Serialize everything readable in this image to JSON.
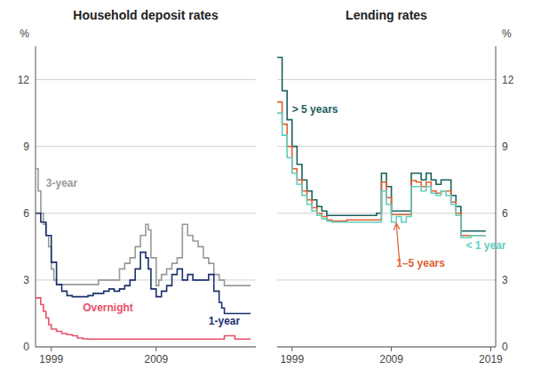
{
  "chart_data": [
    {
      "type": "line",
      "line_style": "step",
      "title": "Household deposit rates",
      "ylabel": "%",
      "xlim": [
        1997.5,
        2018.5
      ],
      "xticks": [
        1999,
        2009
      ],
      "ylim": [
        0,
        13.5
      ],
      "yticks": [
        0,
        3,
        6,
        9,
        12
      ],
      "grid": true,
      "series": [
        {
          "color": "#999999",
          "x": [
            1997.5,
            1997.75,
            1998.0,
            1998.25,
            1998.5,
            1998.75,
            1999.0,
            1999.25,
            1999.5,
            2000.0,
            2000.5,
            2001.0,
            2001.5,
            2002.0,
            2002.5,
            2003.0,
            2003.5,
            2004.0,
            2004.5,
            2005.0,
            2005.5,
            2006.0,
            2006.5,
            2007.0,
            2007.5,
            2008.0,
            2008.25,
            2008.5,
            2009.0,
            2009.25,
            2009.5,
            2010.0,
            2010.5,
            2011.0,
            2011.5,
            2012.0,
            2012.5,
            2013.0,
            2013.5,
            2014.0,
            2014.5,
            2015.0,
            2015.5,
            2016.0,
            2016.5,
            2017.0,
            2017.5,
            2018.0
          ],
          "values": [
            8.0,
            7.0,
            6.0,
            5.5,
            5.0,
            4.5,
            3.5,
            3.0,
            2.8,
            2.8,
            2.8,
            2.8,
            2.8,
            2.8,
            2.8,
            2.8,
            3.0,
            3.0,
            3.0,
            3.0,
            3.5,
            3.75,
            4.0,
            4.5,
            5.0,
            5.5,
            5.25,
            4.0,
            2.75,
            3.0,
            3.25,
            3.5,
            3.75,
            4.0,
            5.5,
            5.0,
            4.75,
            4.5,
            4.0,
            3.75,
            3.25,
            3.0,
            2.75,
            2.75,
            2.75,
            2.75,
            2.75,
            2.75
          ]
        },
        {
          "color": "#1a2f6e",
          "x": [
            1997.5,
            1998.0,
            1998.5,
            1999.0,
            1999.5,
            2000.0,
            2000.5,
            2001.0,
            2001.5,
            2002.0,
            2002.5,
            2003.0,
            2003.5,
            2004.0,
            2004.5,
            2005.0,
            2005.5,
            2006.0,
            2006.5,
            2007.0,
            2007.5,
            2008.0,
            2008.25,
            2008.5,
            2009.0,
            2009.5,
            2010.0,
            2010.5,
            2011.0,
            2011.5,
            2012.0,
            2012.5,
            2013.0,
            2013.5,
            2014.0,
            2014.5,
            2015.0,
            2015.25,
            2015.5,
            2016.0,
            2016.5,
            2017.0,
            2017.5,
            2018.0
          ],
          "values": [
            6.0,
            5.6,
            5.0,
            3.8,
            2.8,
            2.5,
            2.3,
            2.25,
            2.25,
            2.25,
            2.3,
            2.4,
            2.4,
            2.5,
            2.6,
            2.5,
            2.6,
            2.75,
            3.0,
            3.5,
            4.25,
            4.0,
            3.5,
            2.6,
            2.25,
            2.5,
            2.75,
            3.25,
            3.5,
            3.0,
            3.25,
            3.0,
            3.0,
            3.0,
            3.25,
            2.5,
            2.0,
            1.75,
            1.5,
            1.5,
            1.5,
            1.5,
            1.5,
            1.5
          ]
        },
        {
          "color": "#e8506a",
          "x": [
            1997.5,
            1998.0,
            1998.25,
            1998.5,
            1998.75,
            1999.0,
            1999.5,
            2000.0,
            2000.5,
            2001.0,
            2001.5,
            2002.0,
            2002.5,
            2003.0,
            2003.5,
            2004.0,
            2004.5,
            2005.0,
            2005.5,
            2006.0,
            2006.5,
            2007.0,
            2007.5,
            2008.0,
            2008.5,
            2009.0,
            2009.5,
            2010.0,
            2010.5,
            2011.0,
            2011.5,
            2012.0,
            2012.5,
            2013.0,
            2013.5,
            2014.0,
            2014.5,
            2015.0,
            2015.5,
            2016.0,
            2016.5,
            2017.0,
            2017.5,
            2018.0
          ],
          "values": [
            2.2,
            1.9,
            1.6,
            1.3,
            1.0,
            0.8,
            0.7,
            0.6,
            0.55,
            0.5,
            0.4,
            0.36,
            0.35,
            0.35,
            0.35,
            0.35,
            0.35,
            0.35,
            0.35,
            0.35,
            0.35,
            0.35,
            0.35,
            0.35,
            0.35,
            0.35,
            0.35,
            0.35,
            0.35,
            0.35,
            0.35,
            0.35,
            0.35,
            0.35,
            0.35,
            0.35,
            0.35,
            0.35,
            0.5,
            0.5,
            0.35,
            0.35,
            0.35,
            0.35
          ]
        }
      ],
      "annotations": [
        {
          "text": "Overnight",
          "x": 2002.0,
          "y": 1.6,
          "color": "#e8506a"
        },
        {
          "text": "1-year",
          "x": 2014.0,
          "y": 1.0,
          "color": "#1a2f6e"
        },
        {
          "text": "3-year",
          "x": 1998.5,
          "y": 7.2,
          "color": "#999999"
        }
      ]
    },
    {
      "type": "line",
      "line_style": "step",
      "title": "Lending rates",
      "ylabel": "%",
      "xlim": [
        1997.5,
        2019.5
      ],
      "xticks": [
        1999,
        2009,
        2019
      ],
      "ylim": [
        0,
        13.5
      ],
      "yticks": [
        0,
        3,
        6,
        9,
        12
      ],
      "grid": true,
      "series": [
        {
          "color": "#1a6060",
          "x": [
            1997.5,
            1998.0,
            1998.5,
            1999.0,
            1999.5,
            2000.0,
            2000.5,
            2001.0,
            2001.5,
            2002.0,
            2002.5,
            2003.0,
            2003.5,
            2004.0,
            2004.5,
            2005.0,
            2005.5,
            2006.0,
            2006.5,
            2007.0,
            2007.5,
            2008.0,
            2008.5,
            2009.0,
            2009.5,
            2010.0,
            2010.5,
            2011.0,
            2011.5,
            2012.0,
            2012.5,
            2013.0,
            2013.5,
            2014.0,
            2014.5,
            2015.0,
            2015.5,
            2016.0,
            2016.5,
            2017.0,
            2017.5,
            2018.0,
            2018.5
          ],
          "values": [
            13.0,
            11.5,
            10.2,
            9.0,
            8.2,
            7.5,
            7.0,
            6.6,
            6.3,
            6.1,
            5.9,
            5.9,
            5.9,
            5.9,
            5.9,
            5.9,
            5.9,
            5.9,
            5.9,
            5.9,
            6.0,
            7.8,
            7.2,
            6.1,
            6.1,
            6.1,
            6.1,
            7.8,
            7.8,
            7.5,
            7.8,
            7.5,
            7.3,
            7.5,
            7.5,
            6.8,
            6.3,
            5.2,
            5.2,
            5.2,
            5.2,
            5.2,
            5.2
          ]
        },
        {
          "color": "#e06030",
          "x": [
            1997.5,
            1998.0,
            1998.5,
            1999.0,
            1999.5,
            2000.0,
            2000.5,
            2001.0,
            2001.5,
            2002.0,
            2002.5,
            2003.0,
            2003.5,
            2004.0,
            2004.5,
            2005.0,
            2005.5,
            2006.0,
            2006.5,
            2007.0,
            2007.5,
            2008.0,
            2008.5,
            2009.0,
            2009.5,
            2010.0,
            2010.5,
            2011.0,
            2011.5,
            2012.0,
            2012.5,
            2013.0,
            2013.5,
            2014.0,
            2014.5,
            2015.0,
            2015.5,
            2016.0,
            2016.5,
            2017.0,
            2017.5,
            2018.0,
            2018.5
          ],
          "values": [
            11.0,
            10.0,
            9.0,
            8.0,
            7.5,
            7.0,
            6.6,
            6.25,
            6.0,
            5.85,
            5.7,
            5.65,
            5.65,
            5.65,
            5.7,
            5.7,
            5.7,
            5.7,
            5.7,
            5.7,
            5.7,
            7.4,
            6.7,
            5.94,
            5.94,
            5.94,
            5.94,
            7.47,
            7.4,
            7.2,
            7.4,
            7.0,
            6.9,
            7.0,
            7.0,
            6.5,
            6.0,
            5.0,
            5.0,
            5.0,
            5.0,
            5.0,
            5.0
          ]
        },
        {
          "color": "#5ecfbe",
          "x": [
            1997.5,
            1998.0,
            1998.5,
            1999.0,
            1999.5,
            2000.0,
            2000.5,
            2001.0,
            2001.5,
            2002.0,
            2002.5,
            2003.0,
            2003.5,
            2004.0,
            2004.5,
            2005.0,
            2005.5,
            2006.0,
            2006.5,
            2007.0,
            2007.5,
            2008.0,
            2008.5,
            2009.0,
            2009.5,
            2010.0,
            2010.5,
            2011.0,
            2011.5,
            2012.0,
            2012.5,
            2013.0,
            2013.5,
            2014.0,
            2014.5,
            2015.0,
            2015.5,
            2016.0,
            2016.5,
            2017.0,
            2017.5,
            2018.0,
            2018.5
          ],
          "values": [
            10.5,
            9.5,
            8.5,
            7.8,
            7.3,
            6.8,
            6.4,
            6.1,
            5.9,
            5.75,
            5.65,
            5.6,
            5.6,
            5.6,
            5.6,
            5.6,
            5.6,
            5.6,
            5.6,
            5.6,
            5.6,
            7.0,
            6.4,
            5.6,
            5.85,
            5.6,
            5.85,
            7.2,
            7.2,
            7.0,
            7.2,
            6.9,
            6.8,
            7.0,
            6.8,
            6.4,
            5.9,
            4.9,
            4.9,
            5.0,
            5.0,
            5.0,
            5.0
          ]
        }
      ],
      "annotations": [
        {
          "text": "> 5 years",
          "x": 1999.0,
          "y": 10.5,
          "color": "#1a6060"
        },
        {
          "text": "1–5 years",
          "x": 2009.5,
          "y": 3.6,
          "color": "#e06030",
          "arrow_from": [
            2009.8,
            3.9
          ],
          "arrow_to": [
            2009.5,
            5.55
          ]
        },
        {
          "text": "< 1 year",
          "x": 2016.5,
          "y": 4.4,
          "color": "#5ecfbe"
        }
      ]
    }
  ]
}
